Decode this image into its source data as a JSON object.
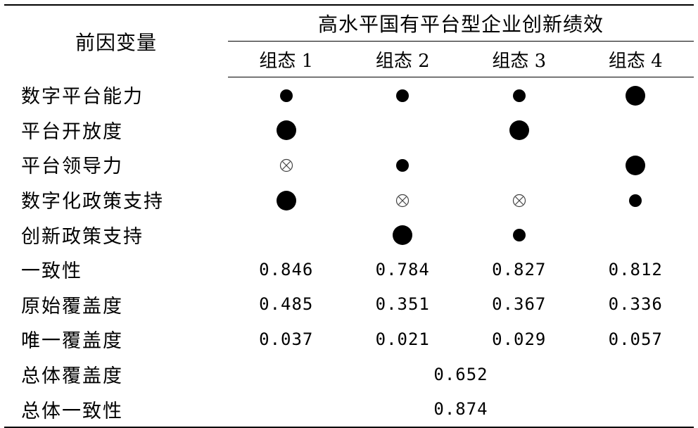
{
  "table": {
    "factor_header": "前因变量",
    "group_header": "高水平国有平台型企业创新绩效",
    "configs": [
      "组态 1",
      "组态 2",
      "组态 3",
      "组态 4"
    ],
    "legend_symbols": {
      "core_present": "large-filled-circle",
      "peripheral_present": "small-filled-circle",
      "peripheral_absent": "circled-cross",
      "blank": "none"
    },
    "condition_rows": [
      {
        "label": "数字平台能力",
        "cells": [
          "small",
          "small",
          "small",
          "large"
        ]
      },
      {
        "label": "平台开放度",
        "cells": [
          "large",
          "",
          "large",
          ""
        ]
      },
      {
        "label": "平台领导力",
        "cells": [
          "cross",
          "small",
          "",
          "large"
        ]
      },
      {
        "label": "数字化政策支持",
        "cells": [
          "large",
          "cross",
          "cross",
          "small"
        ]
      },
      {
        "label": "创新政策支持",
        "cells": [
          "",
          "large",
          "small",
          ""
        ]
      }
    ],
    "metric_rows": [
      {
        "label": "一致性",
        "values": [
          "0.846",
          "0.784",
          "0.827",
          "0.812"
        ]
      },
      {
        "label": "原始覆盖度",
        "values": [
          "0.485",
          "0.351",
          "0.367",
          "0.336"
        ]
      },
      {
        "label": "唯一覆盖度",
        "values": [
          "0.037",
          "0.021",
          "0.029",
          "0.057"
        ]
      }
    ],
    "summary_rows": [
      {
        "label": "总体覆盖度",
        "value": "0.652"
      },
      {
        "label": "总体一致性",
        "value": "0.874"
      }
    ]
  }
}
